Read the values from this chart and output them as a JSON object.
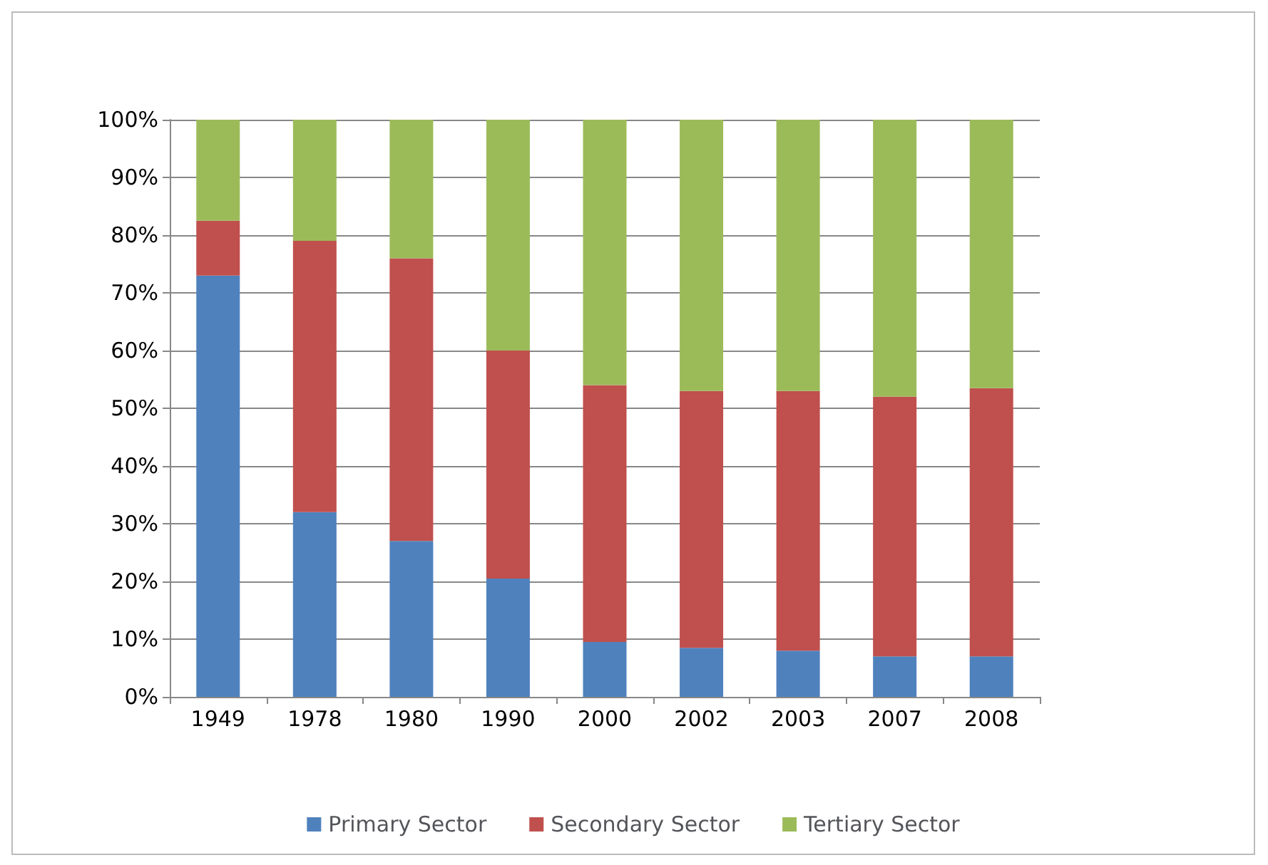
{
  "chart_data": {
    "type": "bar",
    "stacked": true,
    "categories": [
      "1949",
      "1978",
      "1980",
      "1990",
      "2000",
      "2002",
      "2003",
      "2007",
      "2008"
    ],
    "series": [
      {
        "name": "Primary Sector",
        "color": "#4f81bd",
        "values": [
          73,
          32,
          27,
          20.5,
          9.5,
          8.5,
          8,
          7,
          7
        ]
      },
      {
        "name": "Secondary Sector",
        "color": "#c0504d",
        "values": [
          9.5,
          47,
          49,
          39.5,
          44.5,
          44.5,
          45,
          45,
          46.5
        ]
      },
      {
        "name": "Tertiary Sector",
        "color": "#9bbb59",
        "values": [
          17.5,
          21,
          24,
          40,
          46,
          47,
          47,
          48,
          46.5
        ]
      }
    ],
    "ylim": [
      0,
      100
    ],
    "yticks": [
      {
        "value": 0,
        "label": "0%"
      },
      {
        "value": 10,
        "label": "10%"
      },
      {
        "value": 20,
        "label": "20%"
      },
      {
        "value": 30,
        "label": "30%"
      },
      {
        "value": 40,
        "label": "40%"
      },
      {
        "value": 50,
        "label": "50%"
      },
      {
        "value": 60,
        "label": "60%"
      },
      {
        "value": 70,
        "label": "70%"
      },
      {
        "value": 80,
        "label": "80%"
      },
      {
        "value": 90,
        "label": "90%"
      },
      {
        "value": 100,
        "label": "100%"
      }
    ],
    "grid": "y",
    "legend": "bottom"
  }
}
